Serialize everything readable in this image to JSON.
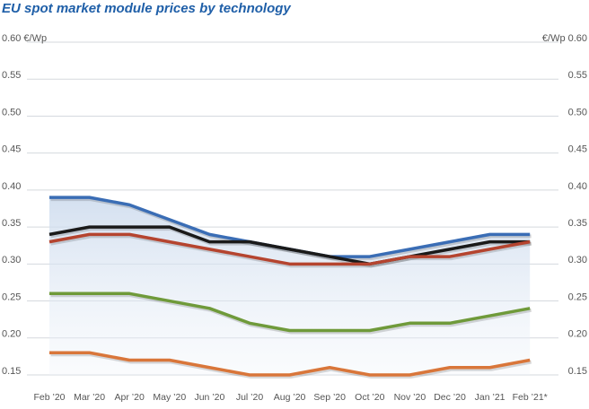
{
  "chart_data": {
    "type": "line",
    "title": "EU spot market module prices  by technology",
    "y_unit": "€/Wp",
    "categories": [
      "Feb ’20",
      "Mar ’20",
      "Apr ’20",
      "May ’20",
      "Jun ’20",
      "Jul ’20",
      "Aug ’20",
      "Sep ’20",
      "Oct ’20",
      "Nov ’20",
      "Dec ’20",
      "Jan ’21",
      "Feb ’21*"
    ],
    "series": [
      {
        "color": "#3a6db5",
        "values": [
          0.39,
          0.39,
          0.38,
          0.36,
          0.34,
          0.33,
          0.32,
          0.31,
          0.31,
          0.32,
          0.33,
          0.34,
          0.34
        ]
      },
      {
        "color": "#1a1a1a",
        "values": [
          0.34,
          0.35,
          0.35,
          0.35,
          0.33,
          0.33,
          0.32,
          0.31,
          0.3,
          0.31,
          0.32,
          0.33,
          0.33
        ]
      },
      {
        "color": "#b5442f",
        "values": [
          0.33,
          0.34,
          0.34,
          0.33,
          0.32,
          0.31,
          0.3,
          0.3,
          0.3,
          0.31,
          0.31,
          0.32,
          0.33
        ]
      },
      {
        "color": "#6f9a3a",
        "values": [
          0.26,
          0.26,
          0.26,
          0.25,
          0.24,
          0.22,
          0.21,
          0.21,
          0.21,
          0.22,
          0.22,
          0.23,
          0.24
        ]
      },
      {
        "color": "#d9763a",
        "values": [
          0.18,
          0.18,
          0.17,
          0.17,
          0.16,
          0.15,
          0.15,
          0.16,
          0.15,
          0.15,
          0.16,
          0.16,
          0.17
        ]
      }
    ],
    "ylim": [
      0.15,
      0.6
    ],
    "yticks": [
      {
        "value": 0.15,
        "label": "0.15"
      },
      {
        "value": 0.2,
        "label": "0.20"
      },
      {
        "value": 0.25,
        "label": "0.25"
      },
      {
        "value": 0.3,
        "label": "0.30"
      },
      {
        "value": 0.35,
        "label": "0.35"
      },
      {
        "value": 0.4,
        "label": "0.40"
      },
      {
        "value": 0.45,
        "label": "0.45"
      },
      {
        "value": 0.5,
        "label": "0.50"
      },
      {
        "value": 0.55,
        "label": "0.55"
      },
      {
        "value": 0.6,
        "label": "0.60"
      }
    ],
    "grid": true,
    "area_under_first_series": true
  }
}
